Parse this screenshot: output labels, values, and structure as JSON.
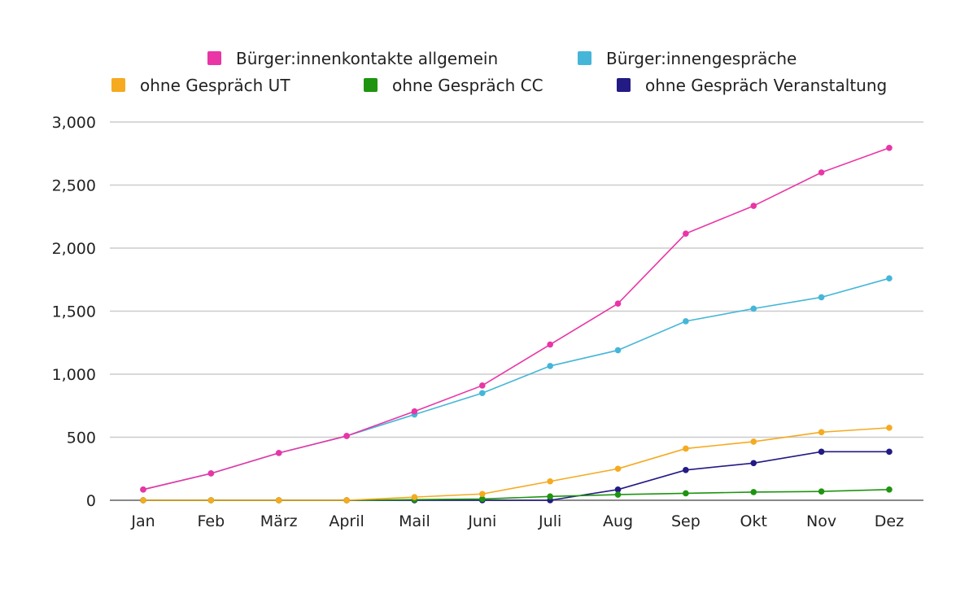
{
  "chart_data": {
    "type": "line",
    "title": "",
    "xlabel": "",
    "ylabel": "",
    "categories": [
      "Jan",
      "Feb",
      "März",
      "April",
      "Mail",
      "Juni",
      "Juli",
      "Aug",
      "Sep",
      "Okt",
      "Nov",
      "Dez"
    ],
    "ylim": [
      0,
      3000
    ],
    "yticks": [
      0,
      500,
      1000,
      1500,
      2000,
      2500,
      3000
    ],
    "ytick_labels": [
      "0",
      "500",
      "1,000",
      "1,500",
      "2,000",
      "2,500",
      "3,000"
    ],
    "grid": true,
    "legend_placement": "top",
    "series": [
      {
        "name": "Bürger:innenkontakte allgemein",
        "color": "#e935a5",
        "values": [
          85,
          213,
          375,
          510,
          705,
          910,
          1235,
          1560,
          2115,
          2335,
          2600,
          2795
        ]
      },
      {
        "name": "Bürger:innengespräche",
        "color": "#45b6d8",
        "values": [
          85,
          213,
          375,
          510,
          680,
          850,
          1065,
          1190,
          1420,
          1520,
          1610,
          1760
        ]
      },
      {
        "name": "ohne Gespräch UT",
        "color": "#f5aa1f",
        "values": [
          0,
          0,
          0,
          0,
          25,
          50,
          150,
          250,
          410,
          465,
          540,
          575
        ]
      },
      {
        "name": "ohne Gespräch CC",
        "color": "#1e9410",
        "values": [
          0,
          0,
          0,
          0,
          5,
          10,
          30,
          45,
          55,
          65,
          70,
          85
        ]
      },
      {
        "name": "ohne Gespräch Veranstaltung",
        "color": "#231a84",
        "values": [
          0,
          0,
          0,
          0,
          0,
          0,
          0,
          85,
          240,
          295,
          385,
          385
        ]
      }
    ]
  }
}
